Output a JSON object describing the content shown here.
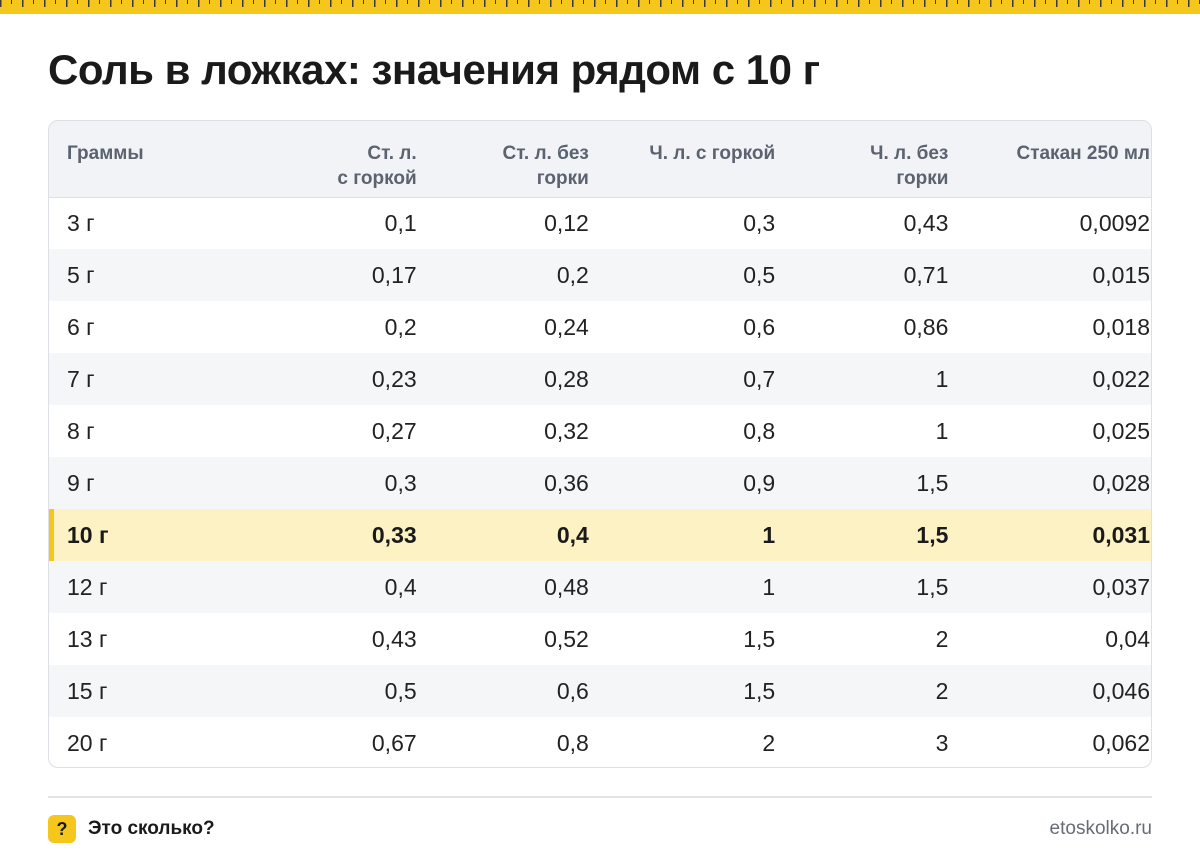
{
  "title": "Соль в ложках: значения рядом с 10 г",
  "table": {
    "headers": [
      [
        "Граммы"
      ],
      [
        "Ст. л.",
        "с горкой"
      ],
      [
        "Ст. л. без",
        "горки"
      ],
      [
        "Ч. л. с горкой"
      ],
      [
        "Ч. л. без",
        "горки"
      ],
      [
        "Стакан 250 мл"
      ]
    ],
    "highlight_row": 6,
    "rows": [
      [
        "3 г",
        "0,1",
        "0,12",
        "0,3",
        "0,43",
        "0,0092"
      ],
      [
        "5 г",
        "0,17",
        "0,2",
        "0,5",
        "0,71",
        "0,015"
      ],
      [
        "6 г",
        "0,2",
        "0,24",
        "0,6",
        "0,86",
        "0,018"
      ],
      [
        "7 г",
        "0,23",
        "0,28",
        "0,7",
        "1",
        "0,022"
      ],
      [
        "8 г",
        "0,27",
        "0,32",
        "0,8",
        "1",
        "0,025"
      ],
      [
        "9 г",
        "0,3",
        "0,36",
        "0,9",
        "1,5",
        "0,028"
      ],
      [
        "10 г",
        "0,33",
        "0,4",
        "1",
        "1,5",
        "0,031"
      ],
      [
        "12 г",
        "0,4",
        "0,48",
        "1",
        "1,5",
        "0,037"
      ],
      [
        "13 г",
        "0,43",
        "0,52",
        "1,5",
        "2",
        "0,04"
      ],
      [
        "15 г",
        "0,5",
        "0,6",
        "1,5",
        "2",
        "0,046"
      ],
      [
        "20 г",
        "0,67",
        "0,8",
        "2",
        "3",
        "0,062"
      ]
    ]
  },
  "footer": {
    "badge": "?",
    "label": "Это сколько?",
    "site": "etoskolko.ru"
  },
  "colors": {
    "accent": "#f5c61b",
    "highlight_row_bg": "#fdf2c4",
    "header_bg": "#f1f3f6",
    "stripe_bg": "#f5f6f8"
  }
}
